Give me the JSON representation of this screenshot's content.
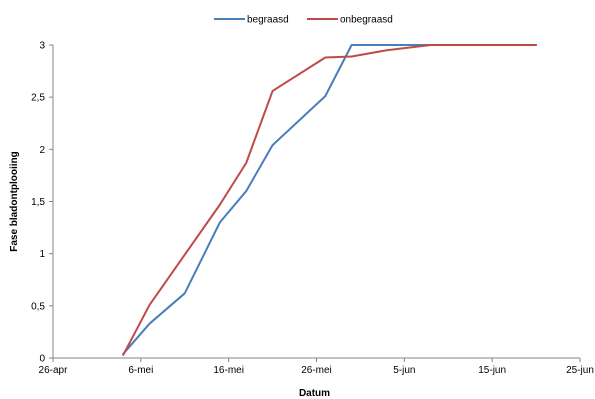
{
  "chart_data": {
    "type": "line",
    "title": "",
    "xlabel": "Datum",
    "ylabel": "Fase bladontplooiing",
    "x_ticks": [
      "26-apr",
      "6-mei",
      "16-mei",
      "26-mei",
      "5-jun",
      "15-jun",
      "25-jun"
    ],
    "y_ticks": [
      "0",
      "0,5",
      "1",
      "1,5",
      "2",
      "2,5",
      "3"
    ],
    "ylim": [
      0,
      3
    ],
    "xlim": [
      "26-apr",
      "25-jun"
    ],
    "grid": false,
    "legend_position": "top",
    "series": [
      {
        "name": "begraasd",
        "color": "#4a7ebb",
        "points": [
          {
            "date": "4-mei",
            "value": 0.04
          },
          {
            "date": "7-mei",
            "value": 0.33
          },
          {
            "date": "11-mei",
            "value": 0.62
          },
          {
            "date": "15-mei",
            "value": 1.3
          },
          {
            "date": "18-mei",
            "value": 1.6
          },
          {
            "date": "21-mei",
            "value": 2.04
          },
          {
            "date": "27-mei",
            "value": 2.51
          },
          {
            "date": "30-mei",
            "value": 3.0
          },
          {
            "date": "8-jun",
            "value": 3.0
          },
          {
            "date": "20-jun",
            "value": 3.0
          }
        ]
      },
      {
        "name": "onbegraasd",
        "color": "#be4b48",
        "points": [
          {
            "date": "4-mei",
            "value": 0.03
          },
          {
            "date": "7-mei",
            "value": 0.51
          },
          {
            "date": "11-mei",
            "value": 0.99
          },
          {
            "date": "15-mei",
            "value": 1.47
          },
          {
            "date": "18-mei",
            "value": 1.87
          },
          {
            "date": "21-mei",
            "value": 2.56
          },
          {
            "date": "27-mei",
            "value": 2.88
          },
          {
            "date": "30-mei",
            "value": 2.89
          },
          {
            "date": "3-jun",
            "value": 2.95
          },
          {
            "date": "8-jun",
            "value": 3.0
          },
          {
            "date": "20-jun",
            "value": 3.0
          }
        ]
      }
    ]
  }
}
